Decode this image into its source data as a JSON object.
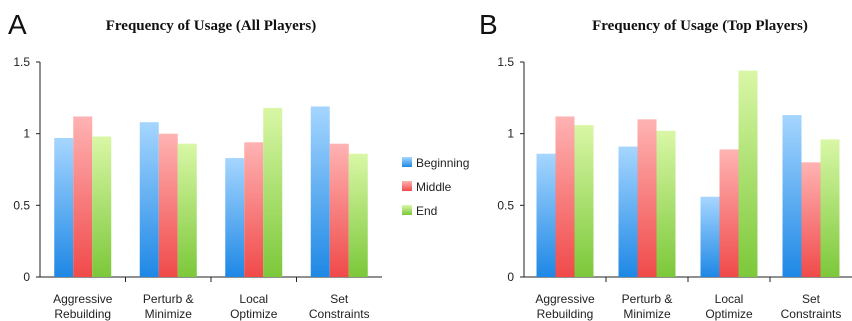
{
  "colors": {
    "Beginning": [
      "#1e88e5",
      "#a6d6ff"
    ],
    "Middle": [
      "#f04a4a",
      "#ffb3b3"
    ],
    "End": [
      "#7cc83a",
      "#d9f7a6"
    ],
    "axis": "#222222"
  },
  "legend": [
    "Beginning",
    "Middle",
    "End"
  ],
  "chart_data": [
    {
      "type": "bar",
      "panel_label": "A",
      "title": "Frequency of Usage (All Players)",
      "categories": [
        [
          "Aggressive",
          "Rebuilding"
        ],
        [
          "Perturb &",
          "Minimize"
        ],
        [
          "Local",
          "Optimize"
        ],
        [
          "Set",
          "Constraints"
        ]
      ],
      "ylim": [
        0,
        1.5
      ],
      "yticks": [
        "0",
        "0.5",
        "1",
        "1.5"
      ],
      "series": [
        {
          "name": "Beginning",
          "values": [
            0.97,
            1.08,
            0.83,
            1.19
          ]
        },
        {
          "name": "Middle",
          "values": [
            1.12,
            1.0,
            0.94,
            0.93
          ]
        },
        {
          "name": "End",
          "values": [
            0.98,
            0.93,
            1.18,
            0.86
          ]
        }
      ],
      "grid": false,
      "legend_position": "right"
    },
    {
      "type": "bar",
      "panel_label": "B",
      "title": "Frequency of Usage (Top Players)",
      "categories": [
        [
          "Aggressive",
          "Rebuilding"
        ],
        [
          "Perturb &",
          "Minimize"
        ],
        [
          "Local",
          "Optimize"
        ],
        [
          "Set",
          "Constraints"
        ]
      ],
      "ylim": [
        0,
        1.5
      ],
      "yticks": [
        "0",
        "0.5",
        "1",
        "1.5"
      ],
      "series": [
        {
          "name": "Beginning",
          "values": [
            0.86,
            0.91,
            0.56,
            1.13
          ]
        },
        {
          "name": "Middle",
          "values": [
            1.12,
            1.1,
            0.89,
            0.8
          ]
        },
        {
          "name": "End",
          "values": [
            1.06,
            1.02,
            1.44,
            0.96
          ]
        }
      ],
      "grid": false
    }
  ]
}
